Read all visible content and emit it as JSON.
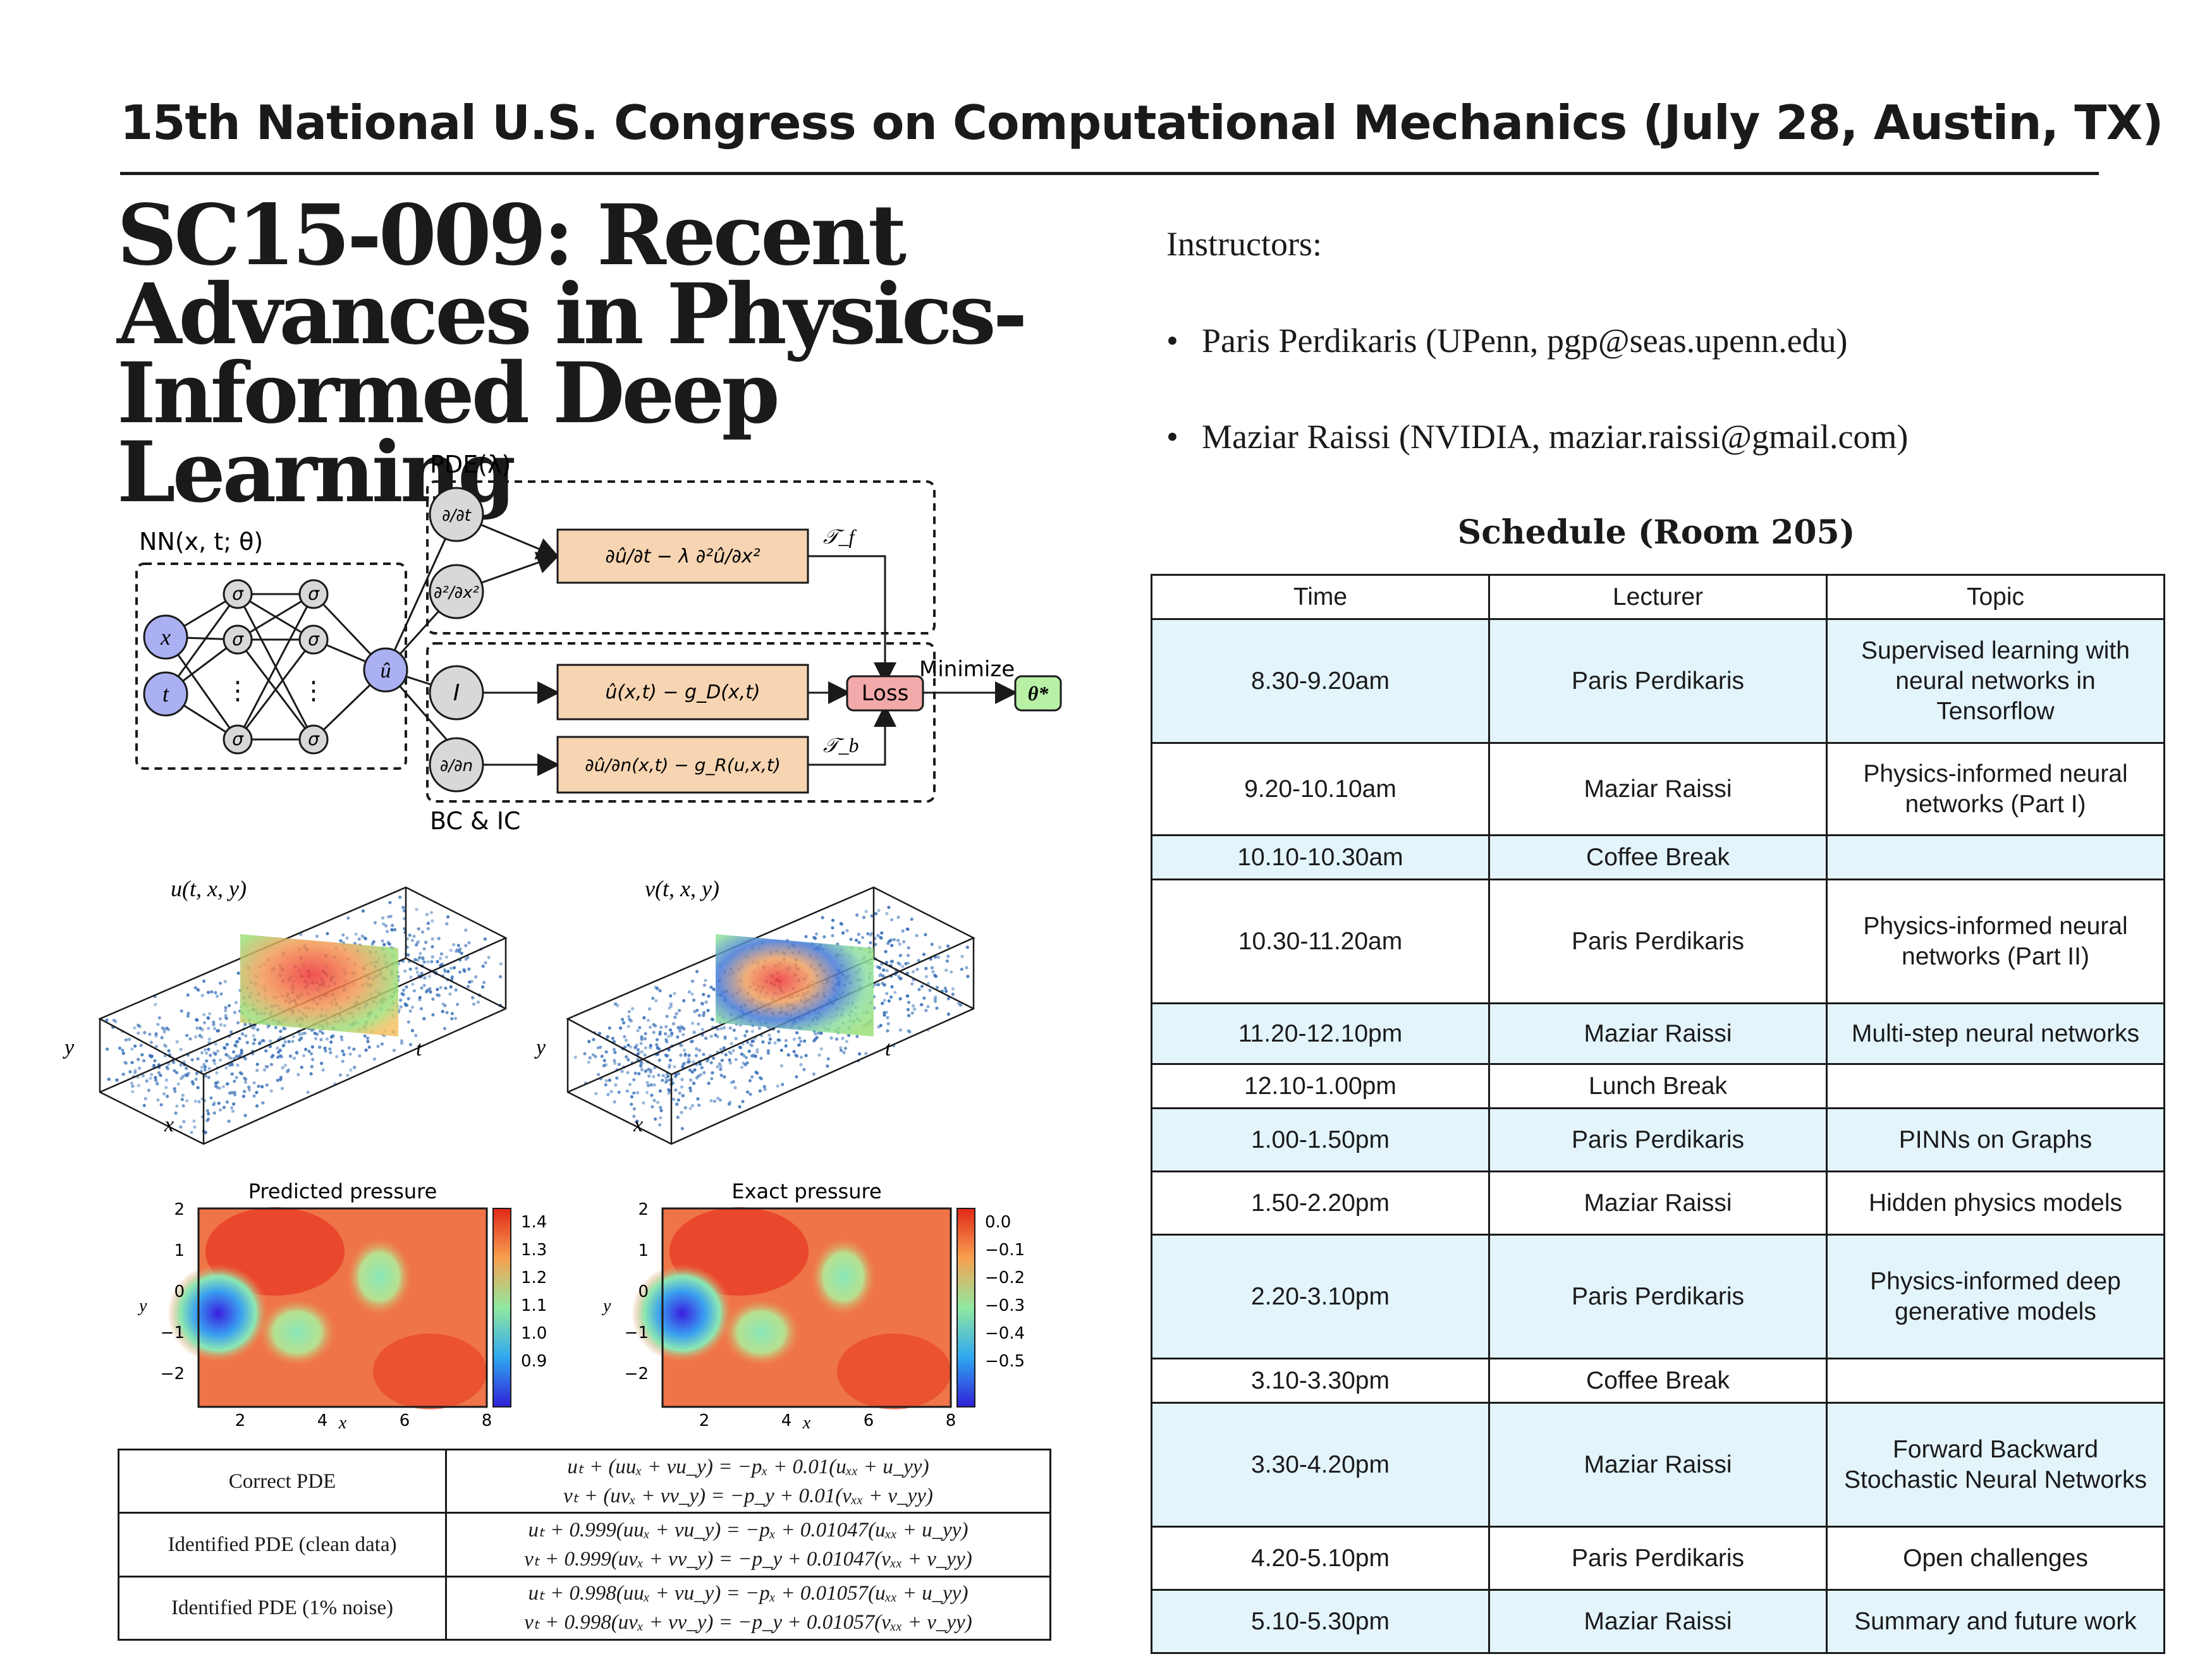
{
  "header": {
    "text": "15th National U.S. Congress on Computational Mechanics (July 28, Austin, TX)"
  },
  "title": {
    "line1": "SC15-009: Recent",
    "line2": "Advances in Physics-",
    "line3": "Informed Deep Learning"
  },
  "instructors": {
    "heading": "Instructors:",
    "bullet": "•",
    "items": [
      "Paris Perdikaris (UPenn, pgp@seas.upenn.edu)",
      "Maziar Raissi (NVIDIA, maziar.raissi@gmail.com)"
    ]
  },
  "schedule": {
    "title": "Schedule (Room 205)",
    "headers": [
      "Time",
      "Lecturer",
      "Topic"
    ],
    "rows": [
      {
        "time": "8.30-9.20am",
        "lecturer": "Paris Perdikaris",
        "topic": "Supervised learning with neural networks in Tensorflow"
      },
      {
        "time": "9.20-10.10am",
        "lecturer": "Maziar Raissi",
        "topic": "Physics-informed neural networks (Part I)"
      },
      {
        "time": "10.10-10.30am",
        "lecturer": "Coffee Break",
        "topic": ""
      },
      {
        "time": "10.30-11.20am",
        "lecturer": "Paris Perdikaris",
        "topic": "Physics-informed neural networks  (Part II)"
      },
      {
        "time": "11.20-12.10pm",
        "lecturer": "Maziar Raissi",
        "topic": "Multi-step neural networks"
      },
      {
        "time": "12.10-1.00pm",
        "lecturer": "Lunch Break",
        "topic": ""
      },
      {
        "time": "1.00-1.50pm",
        "lecturer": "Paris Perdikaris",
        "topic": "PINNs on Graphs"
      },
      {
        "time": "1.50-2.20pm",
        "lecturer": "Maziar Raissi",
        "topic": "Hidden physics models"
      },
      {
        "time": "2.20-3.10pm",
        "lecturer": "Paris Perdikaris",
        "topic": "Physics-informed deep generative models"
      },
      {
        "time": "3.10-3.30pm",
        "lecturer": "Coffee Break",
        "topic": ""
      },
      {
        "time": "3.30-4.20pm",
        "lecturer": "Maziar Raissi",
        "topic": "Forward Backward Stochastic Neural Networks"
      },
      {
        "time": "4.20-5.10pm",
        "lecturer": "Paris Perdikaris",
        "topic": "Open challenges"
      },
      {
        "time": "5.10-5.30pm",
        "lecturer": "Maziar Raissi",
        "topic": "Summary and future work"
      }
    ]
  },
  "diagram": {
    "pde_label": "PDE(λ)",
    "nn_label": "NN(x, t; θ)",
    "bc_label": "BC & IC",
    "input_x": "x",
    "input_t": "t",
    "sigma": "σ",
    "vdots": "⋮",
    "output": "û",
    "d_dt": "∂/∂t",
    "d2_dx2": "∂²/∂x²",
    "identity": "I",
    "d_dn": "∂/∂n",
    "residual_pde": "∂û/∂t − λ ∂²û/∂x²",
    "residual_d": "û(x,t) − g_D(x,t)",
    "residual_r": "∂û/∂n(x,t) − g_R(u,x,t)",
    "tf": "𝒯_f",
    "tb": "𝒯_b",
    "loss": "Loss",
    "minimize": "Minimize",
    "theta_star": "θ*",
    "colors": {
      "input": "#aab0f2",
      "hidden": "#d8d8d8",
      "operator": "#d8d8d8",
      "residual": "#f7d5b2",
      "loss": "#f2a9a9",
      "theta": "#b8f0a6"
    }
  },
  "scatter_plots": {
    "u_label": "u(t, x, y)",
    "v_label": "v(t, x, y)",
    "axis_y": "y",
    "axis_t": "t",
    "axis_x": "x",
    "point_color": "#3a72b8"
  },
  "pressure_plots": {
    "predicted": {
      "title": "Predicted pressure",
      "yticks": [
        "2",
        "1",
        "0",
        "−1",
        "−2"
      ],
      "xticks": [
        "2",
        "4",
        "6",
        "8"
      ],
      "colorbar": [
        "1.4",
        "1.3",
        "1.2",
        "1.1",
        "1.0",
        "0.9"
      ],
      "xlabel": "x",
      "ylabel": "y"
    },
    "exact": {
      "title": "Exact pressure",
      "yticks": [
        "2",
        "1",
        "0",
        "−1",
        "−2"
      ],
      "xticks": [
        "2",
        "4",
        "6",
        "8"
      ],
      "colorbar": [
        "0.0",
        "−0.1",
        "−0.2",
        "−0.3",
        "−0.4",
        "−0.5"
      ],
      "xlabel": "x",
      "ylabel": "y"
    }
  },
  "pde_table": {
    "rows": [
      {
        "label": "Correct PDE",
        "eq1": "uₜ + (uuₓ + vu_y) = −pₓ + 0.01(uₓₓ + u_yy)",
        "eq2": "vₜ + (uvₓ + vv_y) = −p_y + 0.01(vₓₓ + v_yy)"
      },
      {
        "label": "Identified PDE (clean data)",
        "eq1": "uₜ + 0.999(uuₓ + vu_y) = −pₓ + 0.01047(uₓₓ + u_yy)",
        "eq2": "vₜ + 0.999(uvₓ + vv_y) = −p_y + 0.01047(vₓₓ + v_yy)"
      },
      {
        "label": "Identified PDE (1% noise)",
        "eq1": "uₜ + 0.998(uuₓ + vu_y) = −pₓ + 0.01057(uₓₓ + u_yy)",
        "eq2": "vₜ + 0.998(uvₓ + vv_y) = −p_y + 0.01057(vₓₓ + v_yy)"
      }
    ]
  }
}
